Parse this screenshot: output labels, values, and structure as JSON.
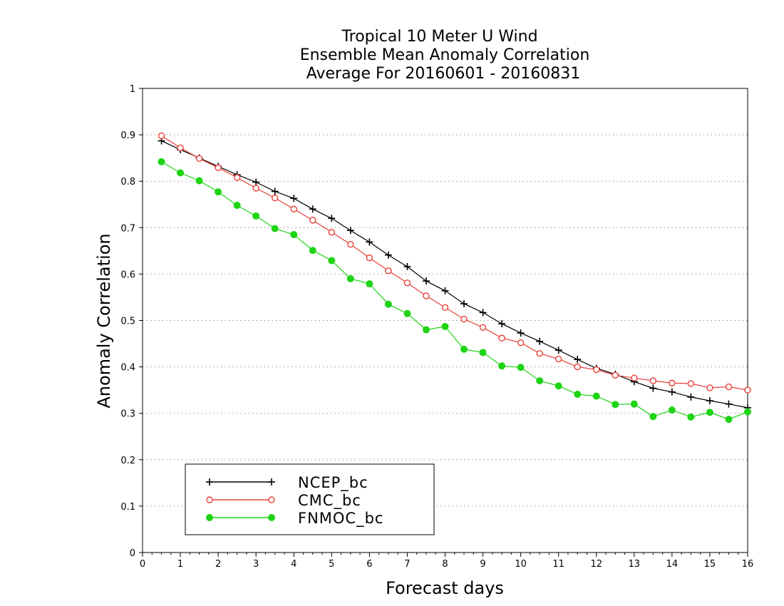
{
  "chart_data": {
    "type": "line",
    "title": [
      "Tropical 10 Meter U Wind",
      "Ensemble Mean Anomaly Correlation",
      "Average For 20160601 - 20160831"
    ],
    "xlabel": "Forecast days",
    "ylabel": "Anomaly Correlation",
    "xlim": [
      0,
      16
    ],
    "ylim": [
      0,
      1
    ],
    "xticks": [
      0,
      1,
      2,
      3,
      4,
      5,
      6,
      7,
      8,
      9,
      10,
      11,
      12,
      13,
      14,
      15,
      16
    ],
    "yticks": [
      0,
      0.1,
      0.2,
      0.3,
      0.4,
      0.5,
      0.6,
      0.7,
      0.8,
      0.9,
      1
    ],
    "ytick_labels": [
      "0",
      "0.1",
      "0.2",
      "0.3",
      "0.4",
      "0.5",
      "0.6",
      "0.7",
      "0.8",
      "0.9",
      "1"
    ],
    "grid": "horizontal dotted",
    "legend_position": "bottom-left",
    "x": [
      0.5,
      1,
      1.5,
      2,
      2.5,
      3,
      3.5,
      4,
      4.5,
      5,
      5.5,
      6,
      6.5,
      7,
      7.5,
      8,
      8.5,
      9,
      9.5,
      10,
      10.5,
      11,
      11.5,
      12,
      12.5,
      13,
      13.5,
      14,
      14.5,
      15,
      15.5,
      16
    ],
    "series": [
      {
        "name": "NCEP_bc",
        "color": "#000000",
        "marker": "plus",
        "values": [
          0.887,
          0.868,
          0.85,
          0.832,
          0.814,
          0.798,
          0.778,
          0.763,
          0.74,
          0.72,
          0.694,
          0.669,
          0.641,
          0.616,
          0.585,
          0.564,
          0.536,
          0.517,
          0.493,
          0.473,
          0.455,
          0.436,
          0.416,
          0.397,
          0.384,
          0.368,
          0.354,
          0.346,
          0.335,
          0.327,
          0.32,
          0.312
        ]
      },
      {
        "name": "CMC_bc",
        "color": "#e8413a",
        "marker": "open-circle",
        "values": [
          0.898,
          0.872,
          0.849,
          0.829,
          0.808,
          0.785,
          0.764,
          0.74,
          0.716,
          0.69,
          0.664,
          0.635,
          0.607,
          0.581,
          0.553,
          0.528,
          0.503,
          0.485,
          0.462,
          0.452,
          0.429,
          0.417,
          0.4,
          0.394,
          0.382,
          0.376,
          0.37,
          0.365,
          0.364,
          0.355,
          0.357,
          0.35
        ]
      },
      {
        "name": "FNMOC_bc",
        "color": "#1ed414",
        "marker": "filled-circle",
        "values": [
          0.842,
          0.818,
          0.801,
          0.777,
          0.748,
          0.725,
          0.698,
          0.685,
          0.651,
          0.629,
          0.59,
          0.579,
          0.535,
          0.515,
          0.48,
          0.487,
          0.438,
          0.431,
          0.402,
          0.399,
          0.37,
          0.359,
          0.341,
          0.337,
          0.319,
          0.32,
          0.293,
          0.307,
          0.292,
          0.302,
          0.287,
          0.303
        ]
      }
    ]
  }
}
